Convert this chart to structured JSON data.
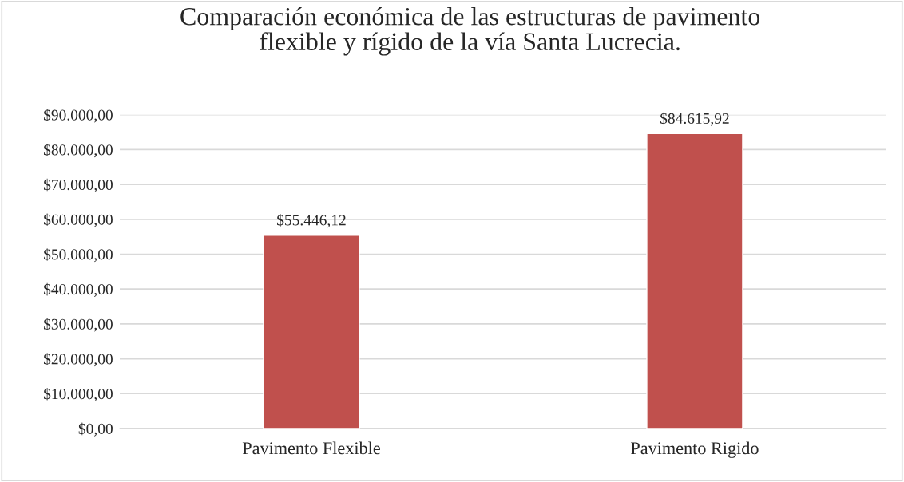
{
  "chart_data": {
    "type": "bar",
    "title": "Comparación económica de las estructuras de pavimento\nflexible y rígido de la vía Santa Lucrecia.",
    "categories": [
      "Pavimento Flexible",
      "Pavimento Rigido"
    ],
    "values": [
      55446.12,
      84615.92
    ],
    "color": "#c0504d",
    "value_labels": [
      "$55.446,12",
      "$84.615,92"
    ],
    "ylim": [
      0,
      90000
    ],
    "yticks": [
      {
        "value": 0,
        "label": "$0,00"
      },
      {
        "value": 10000,
        "label": "$10.000,00"
      },
      {
        "value": 20000,
        "label": "$20.000,00"
      },
      {
        "value": 30000,
        "label": "$30.000,00"
      },
      {
        "value": 40000,
        "label": "$40.000,00"
      },
      {
        "value": 50000,
        "label": "$50.000,00"
      },
      {
        "value": 60000,
        "label": "$60.000,00"
      },
      {
        "value": 70000,
        "label": "$70.000,00"
      },
      {
        "value": 80000,
        "label": "$80.000,00"
      },
      {
        "value": 90000,
        "label": "$90.000,00"
      }
    ],
    "grid": "y"
  }
}
